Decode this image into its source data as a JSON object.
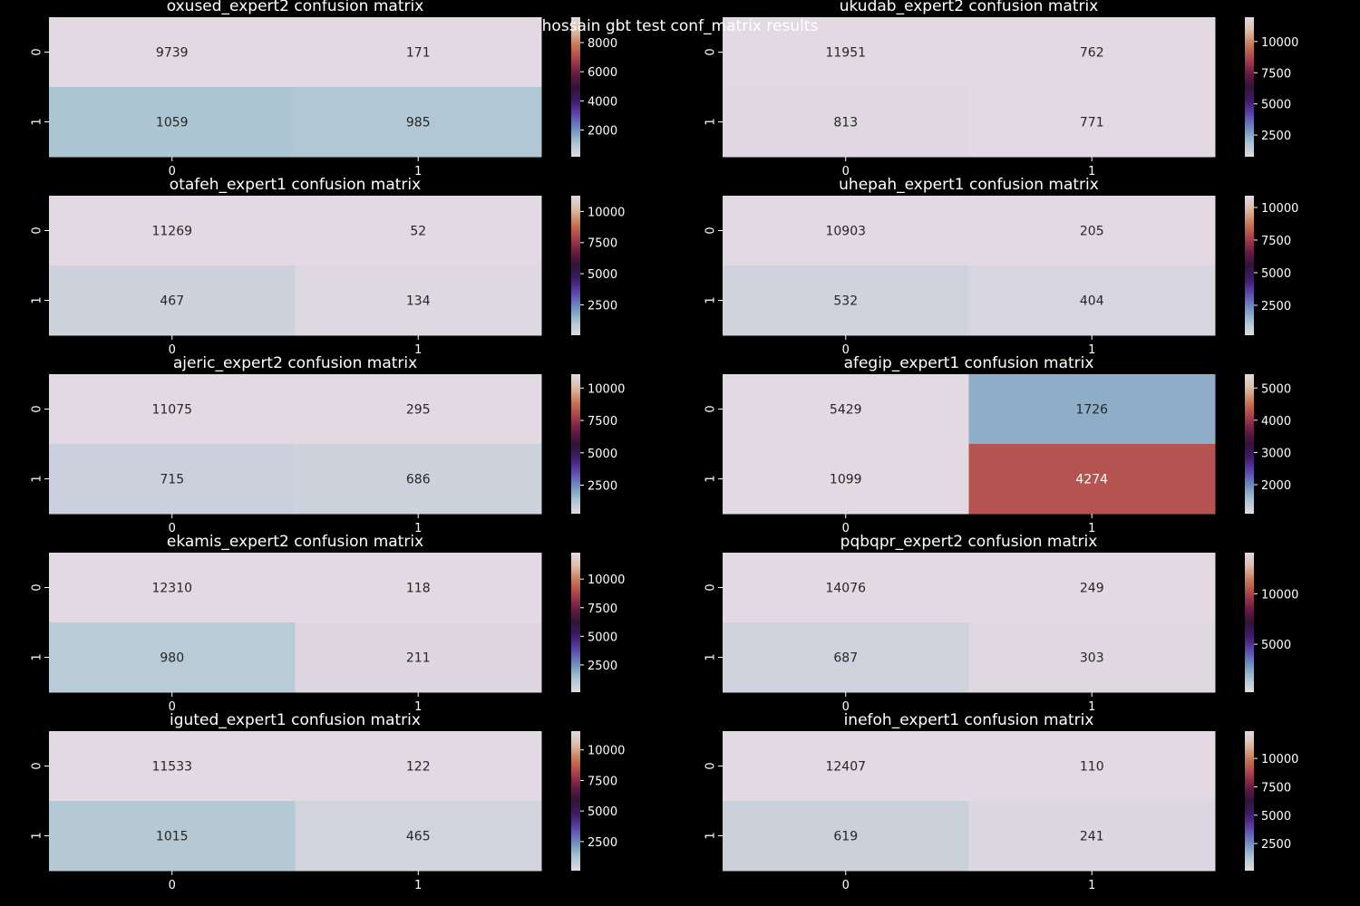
{
  "figure": {
    "suptitle": "hossain gbt test conf_matrix results",
    "background": "#000000",
    "text_color": "#ffffff",
    "colormap": "twilight",
    "colormap_stops": [
      "#e2d9e2",
      "#a8c5d2",
      "#6d8fbf",
      "#5e47b0",
      "#3f1a6a",
      "#2f1436",
      "#6b1b44",
      "#aa404d",
      "#c97852",
      "#dcbca6",
      "#e2d9e2"
    ]
  },
  "chart_data": [
    {
      "type": "heatmap",
      "title": "oxused_expert2 confusion matrix",
      "x_ticks": [
        "0",
        "1"
      ],
      "y_ticks": [
        "0",
        "1"
      ],
      "values": [
        [
          9739,
          171
        ],
        [
          1059,
          985
        ]
      ],
      "colorbar_ticks": [
        2000,
        4000,
        6000,
        8000
      ]
    },
    {
      "type": "heatmap",
      "title": "ukudab_expert2 confusion matrix",
      "x_ticks": [
        "0",
        "1"
      ],
      "y_ticks": [
        "0",
        "1"
      ],
      "values": [
        [
          11951,
          762
        ],
        [
          813,
          771
        ]
      ],
      "colorbar_ticks": [
        2500,
        5000,
        7500,
        10000
      ]
    },
    {
      "type": "heatmap",
      "title": "otafeh_expert1 confusion matrix",
      "x_ticks": [
        "0",
        "1"
      ],
      "y_ticks": [
        "0",
        "1"
      ],
      "values": [
        [
          11269,
          52
        ],
        [
          467,
          134
        ]
      ],
      "colorbar_ticks": [
        2500,
        5000,
        7500,
        10000
      ]
    },
    {
      "type": "heatmap",
      "title": "uhepah_expert1 confusion matrix",
      "x_ticks": [
        "0",
        "1"
      ],
      "y_ticks": [
        "0",
        "1"
      ],
      "values": [
        [
          10903,
          205
        ],
        [
          532,
          404
        ]
      ],
      "colorbar_ticks": [
        2500,
        5000,
        7500,
        10000
      ]
    },
    {
      "type": "heatmap",
      "title": "ajeric_expert2 confusion matrix",
      "x_ticks": [
        "0",
        "1"
      ],
      "y_ticks": [
        "0",
        "1"
      ],
      "values": [
        [
          11075,
          295
        ],
        [
          715,
          686
        ]
      ],
      "colorbar_ticks": [
        2500,
        5000,
        7500,
        10000
      ]
    },
    {
      "type": "heatmap",
      "title": "afegip_expert1 confusion matrix",
      "x_ticks": [
        "0",
        "1"
      ],
      "y_ticks": [
        "0",
        "1"
      ],
      "values": [
        [
          5429,
          1726
        ],
        [
          1099,
          4274
        ]
      ],
      "colorbar_ticks": [
        2000,
        3000,
        4000,
        5000
      ]
    },
    {
      "type": "heatmap",
      "title": "ekamis_expert2 confusion matrix",
      "x_ticks": [
        "0",
        "1"
      ],
      "y_ticks": [
        "0",
        "1"
      ],
      "values": [
        [
          12310,
          118
        ],
        [
          980,
          211
        ]
      ],
      "colorbar_ticks": [
        2500,
        5000,
        7500,
        10000
      ]
    },
    {
      "type": "heatmap",
      "title": "pqbqpr_expert2 confusion matrix",
      "x_ticks": [
        "0",
        "1"
      ],
      "y_ticks": [
        "0",
        "1"
      ],
      "values": [
        [
          14076,
          249
        ],
        [
          687,
          303
        ]
      ],
      "colorbar_ticks": [
        5000,
        10000
      ]
    },
    {
      "type": "heatmap",
      "title": "iguted_expert1 confusion matrix",
      "x_ticks": [
        "0",
        "1"
      ],
      "y_ticks": [
        "0",
        "1"
      ],
      "values": [
        [
          11533,
          122
        ],
        [
          1015,
          465
        ]
      ],
      "colorbar_ticks": [
        2500,
        5000,
        7500,
        10000
      ]
    },
    {
      "type": "heatmap",
      "title": "inefoh_expert1 confusion matrix",
      "x_ticks": [
        "0",
        "1"
      ],
      "y_ticks": [
        "0",
        "1"
      ],
      "values": [
        [
          12407,
          110
        ],
        [
          619,
          241
        ]
      ],
      "colorbar_ticks": [
        2500,
        5000,
        7500,
        10000
      ]
    }
  ]
}
